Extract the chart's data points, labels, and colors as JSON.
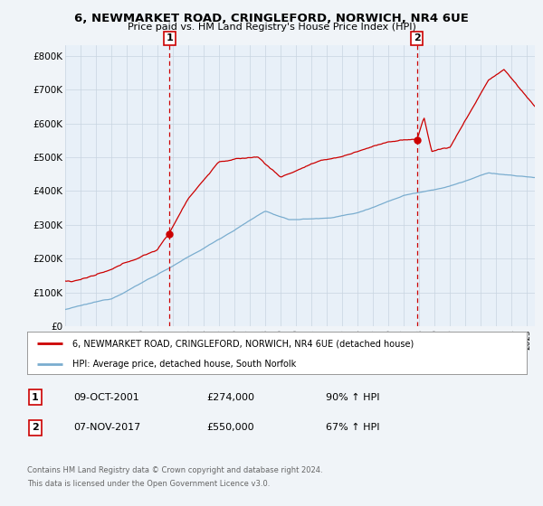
{
  "title_line1": "6, NEWMARKET ROAD, CRINGLEFORD, NORWICH, NR4 6UE",
  "title_line2": "Price paid vs. HM Land Registry's House Price Index (HPI)",
  "ylabel_ticks": [
    "£0",
    "£100K",
    "£200K",
    "£300K",
    "£400K",
    "£500K",
    "£600K",
    "£700K",
    "£800K"
  ],
  "ytick_values": [
    0,
    100000,
    200000,
    300000,
    400000,
    500000,
    600000,
    700000,
    800000
  ],
  "ylim": [
    0,
    830000
  ],
  "xlim_start": 1995.0,
  "xlim_end": 2025.5,
  "sale1_x": 2001.77,
  "sale1_y": 274000,
  "sale2_x": 2017.85,
  "sale2_y": 550000,
  "property_color": "#cc0000",
  "hpi_color": "#7aadcf",
  "legend_label1": "6, NEWMARKET ROAD, CRINGLEFORD, NORWICH, NR4 6UE (detached house)",
  "legend_label2": "HPI: Average price, detached house, South Norfolk",
  "footnote1": "Contains HM Land Registry data © Crown copyright and database right 2024.",
  "footnote2": "This data is licensed under the Open Government Licence v3.0.",
  "table_row1": [
    "1",
    "09-OCT-2001",
    "£274,000",
    "90% ↑ HPI"
  ],
  "table_row2": [
    "2",
    "07-NOV-2017",
    "£550,000",
    "67% ↑ HPI"
  ],
  "bg_color": "#f0f4f8",
  "plot_bg_color": "#e8f0f8"
}
